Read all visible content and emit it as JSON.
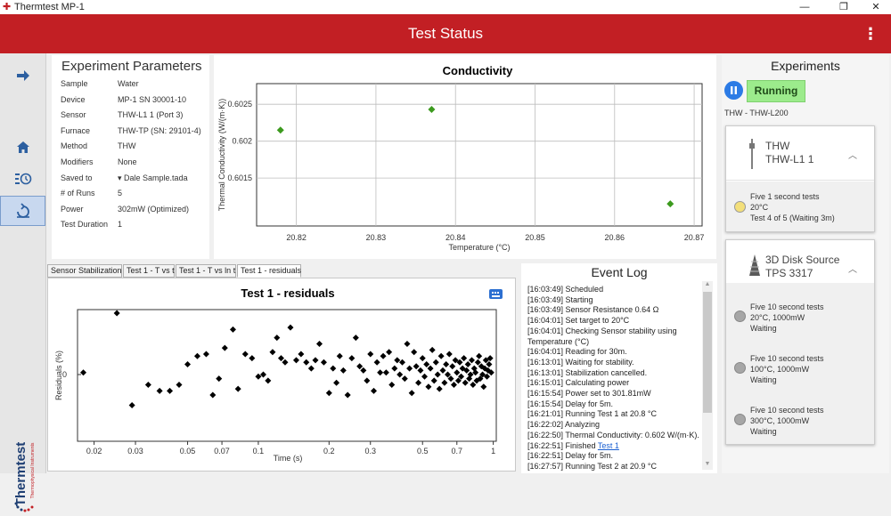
{
  "window": {
    "title": "Thermtest MP-1",
    "minimize": "—",
    "restore": "❐",
    "close": "✕"
  },
  "header": {
    "title": "Test Status",
    "menu_icon": "⋮"
  },
  "sidebar": {
    "brand_name": "Thermtest",
    "brand_sub": "Thermophysical Instruments"
  },
  "params": {
    "title": "Experiment Parameters",
    "rows": [
      {
        "label": "Sample",
        "value": "Water"
      },
      {
        "label": "Device",
        "value": "MP-1 SN 30001-10"
      },
      {
        "label": "Sensor",
        "value": "THW-L1 1 (Port 3)"
      },
      {
        "label": "Furnace",
        "value": "THW-TP (SN: 29101-4)"
      },
      {
        "label": "Method",
        "value": "THW"
      },
      {
        "label": "Modifiers",
        "value": "None"
      },
      {
        "label": "Saved to",
        "value": "Dale Sample.tada"
      },
      {
        "label": "# of Runs",
        "value": "5"
      },
      {
        "label": "Power",
        "value": "302mW (Optimized)"
      },
      {
        "label": "Test Duration",
        "value": "1"
      }
    ]
  },
  "conductivity_chart": {
    "title": "Conductivity",
    "xlabel": "Temperature (°C)",
    "ylabel": "Thermal Conductivity (W/(m·K))",
    "xticks": [
      "20.82",
      "20.83",
      "20.84",
      "20.85",
      "20.86",
      "20.87"
    ],
    "yticks": [
      "0.6025",
      "0.602",
      "0.6015"
    ],
    "color": "#3c9a1e"
  },
  "tabs": [
    "Sensor Stabilization",
    "Test 1 - T vs t",
    "Test 1 - T vs ln t",
    "Test 1 - residuals"
  ],
  "residuals_chart": {
    "title": "Test 1 - residuals",
    "xlabel": "Time (s)",
    "ylabel": "Residuals (%)",
    "yzero": "0",
    "xticks": [
      "0.02",
      "0.03",
      "0.05",
      "0.07",
      "0.1",
      "0.2",
      "0.3",
      "0.5",
      "0.7",
      "1"
    ],
    "keyboard_icon": "keyboard-icon"
  },
  "chart_data": [
    {
      "type": "scatter",
      "title": "Conductivity",
      "xlabel": "Temperature (°C)",
      "ylabel": "Thermal Conductivity (W/(m·K))",
      "xlim": [
        20.815,
        20.871
      ],
      "ylim": [
        0.60085,
        0.60278
      ],
      "series": [
        {
          "x": [
            20.818,
            20.837,
            20.867
          ],
          "y": [
            0.60215,
            0.60243,
            0.60115
          ]
        }
      ]
    },
    {
      "type": "scatter",
      "title": "Test 1 - residuals",
      "xlabel": "Time (s)",
      "ylabel": "Residuals (%)",
      "xscale": "log",
      "series": [
        {
          "x": [
            0.018,
            0.025,
            0.029,
            0.034,
            0.038,
            0.042,
            0.046,
            0.05,
            0.055,
            0.06,
            0.064,
            0.068,
            0.072,
            0.078,
            0.082,
            0.088,
            0.094,
            0.1,
            0.105,
            0.11,
            0.115,
            0.12,
            0.125,
            0.13,
            0.137,
            0.145,
            0.152,
            0.16,
            0.168,
            0.175,
            0.182,
            0.19,
            0.2,
            0.208,
            0.215,
            0.222,
            0.23,
            0.24,
            0.25,
            0.26,
            0.27,
            0.28,
            0.29,
            0.3,
            0.31,
            0.32,
            0.33,
            0.34,
            0.35,
            0.36,
            0.37,
            0.38,
            0.39,
            0.4,
            0.41,
            0.42,
            0.43,
            0.44,
            0.45,
            0.46,
            0.47,
            0.48,
            0.49,
            0.5,
            0.51,
            0.52,
            0.53,
            0.54,
            0.55,
            0.56,
            0.57,
            0.58,
            0.59,
            0.6,
            0.61,
            0.62,
            0.63,
            0.64,
            0.65,
            0.66,
            0.67,
            0.68,
            0.69,
            0.7,
            0.71,
            0.72,
            0.73,
            0.74,
            0.75,
            0.76,
            0.77,
            0.78,
            0.79,
            0.8,
            0.81,
            0.82,
            0.83,
            0.84,
            0.85,
            0.86,
            0.87,
            0.88,
            0.89,
            0.9,
            0.91,
            0.92,
            0.93,
            0.94,
            0.95,
            0.96,
            0.97,
            0.98
          ],
          "y": [
            0.1,
            3.0,
            -1.5,
            -0.5,
            -0.8,
            -0.8,
            -0.5,
            0.5,
            0.9,
            1.0,
            -1.0,
            -0.2,
            1.3,
            2.2,
            -0.7,
            1.0,
            0.8,
            -0.1,
            0.0,
            -0.3,
            1.1,
            1.8,
            0.8,
            0.6,
            2.3,
            0.7,
            1.0,
            0.6,
            0.3,
            0.7,
            1.5,
            0.6,
            -0.9,
            0.3,
            -0.4,
            0.9,
            0.2,
            -1.0,
            0.8,
            1.8,
            0.4,
            0.2,
            -0.3,
            1.0,
            -0.8,
            0.6,
            0.1,
            0.9,
            0.1,
            1.1,
            -0.5,
            0.3,
            0.7,
            0.0,
            0.6,
            -0.2,
            1.5,
            0.3,
            -0.9,
            1.1,
            0.4,
            -0.4,
            0.2,
            0.8,
            -0.1,
            0.5,
            -0.6,
            0.3,
            1.2,
            -0.3,
            0.6,
            0.0,
            -0.7,
            0.9,
            0.2,
            -0.4,
            0.5,
            0.0,
            1.0,
            -0.2,
            0.4,
            -0.5,
            0.7,
            0.1,
            -0.3,
            0.6,
            -0.1,
            0.3,
            0.8,
            -0.4,
            0.2,
            0.5,
            -0.2,
            0.0,
            0.7,
            -0.5,
            0.3,
            0.1,
            -0.3,
            0.6,
            0.9,
            -0.2,
            0.4,
            0.0,
            -0.6,
            0.3,
            0.7,
            -0.1,
            0.2,
            0.5,
            0.8,
            0.1
          ]
        }
      ]
    }
  ],
  "event_log": {
    "title": "Event Log",
    "lines": [
      "[16:03:49] Scheduled",
      "[16:03:49] Starting",
      "[16:03:49] Sensor Resistance 0.64 Ω",
      "[16:04:01] Set target to 20°C",
      "[16:04:01] Checking Sensor stability using",
      "Temperature (°C)",
      "[16:04:01] Reading for 30m.",
      "[16:13:01] Waiting for stability.",
      "[16:13:01] Stabilization cancelled.",
      "[16:15:01] Calculating power",
      "[16:15:54] Power set to 301.81mW",
      "[16:15:54] Delay for 5m.",
      "[16:21:01] Running Test 1 at 20.8 °C",
      "[16:22:02] Analyzing",
      "[16:22:50] Thermal Conductivity: 0.602 W/(m·K).",
      "[16:22:51] Finished ",
      "[16:22:51] Delay for 5m.",
      "[16:27:57] Running Test 2 at 20.9 °C"
    ],
    "finished_link": "Test 1"
  },
  "experiments": {
    "title": "Experiments",
    "status": "Running",
    "pause_icon": "pause-icon",
    "experiment_name": "THW - THW-L200",
    "cards": [
      {
        "type": "THW",
        "name": "THW-L1 1",
        "tests": [
          {
            "line1": "Five 1 second tests",
            "line2": "20°C",
            "line3": "Test 4 of 5 (Waiting 3m)",
            "status_color": "#f3df7a"
          }
        ]
      },
      {
        "type": "3D Disk Source",
        "name": "TPS 3317",
        "tests": [
          {
            "line1": "Five 10 second tests",
            "line2": "20°C, 1000mW",
            "line3": "Waiting",
            "status_color": "#a6a6a6"
          },
          {
            "line1": "Five 10 second tests",
            "line2": "100°C, 1000mW",
            "line3": "Waiting",
            "status_color": "#a6a6a6"
          },
          {
            "line1": "Five 10 second tests",
            "line2": "300°C, 1000mW",
            "line3": "Waiting",
            "status_color": "#a6a6a6"
          }
        ]
      }
    ]
  }
}
